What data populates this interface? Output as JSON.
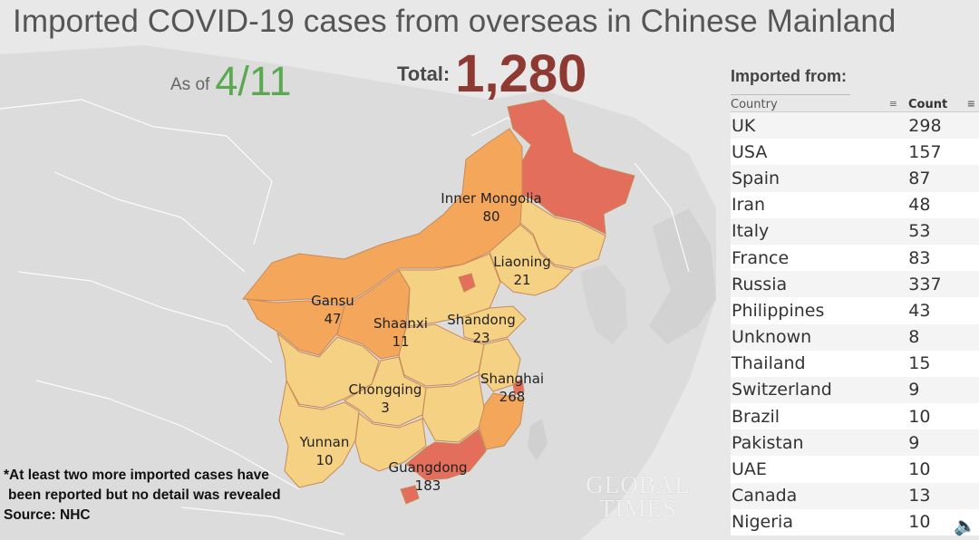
{
  "header": {
    "title": "Imported COVID-19 cases from overseas in Chinese Mainland",
    "as_of_label": "As of",
    "as_of_date": "4/11",
    "total_label": "Total:",
    "total_value": "1,280"
  },
  "map": {
    "province_labels": [
      {
        "name": "Inner Mongolia",
        "value": "80"
      },
      {
        "name": "Liaoning",
        "value": "21"
      },
      {
        "name": "Gansu",
        "value": "47"
      },
      {
        "name": "Shaanxi",
        "value": "11"
      },
      {
        "name": "Shandong",
        "value": "23"
      },
      {
        "name": "Shanghai",
        "value": "268"
      },
      {
        "name": "Chongqing",
        "value": "3"
      },
      {
        "name": "Yunnan",
        "value": "10"
      },
      {
        "name": "Guangdong",
        "value": "183"
      }
    ],
    "colors": {
      "low": "#f6d37f",
      "mid": "#f5a656",
      "high": "#e66a5b",
      "border": "#c98a4a",
      "land": "#dadada",
      "land_border": "#ffffff"
    }
  },
  "footnote": {
    "line1": "*At least two more imported cases have",
    "line2": "been reported but no detail was revealed",
    "line3": "Source: NHC"
  },
  "watermark": {
    "line1": "GLOBAL",
    "line2": "TIMES"
  },
  "table": {
    "title": "Imported from:",
    "col_country": "Country",
    "col_count": "Count",
    "sort_icon": "sort-icon",
    "rows": [
      {
        "country": "UK",
        "count": "298"
      },
      {
        "country": "USA",
        "count": "157"
      },
      {
        "country": "Spain",
        "count": "87"
      },
      {
        "country": "Iran",
        "count": "48"
      },
      {
        "country": "Italy",
        "count": "53"
      },
      {
        "country": "France",
        "count": "83"
      },
      {
        "country": "Russia",
        "count": "337"
      },
      {
        "country": "Philippines",
        "count": "43"
      },
      {
        "country": "Unknown",
        "count": "8"
      },
      {
        "country": "Thailand",
        "count": "15"
      },
      {
        "country": "Switzerland",
        "count": "9"
      },
      {
        "country": "Brazil",
        "count": "10"
      },
      {
        "country": "Pakistan",
        "count": "9"
      },
      {
        "country": "UAE",
        "count": "10"
      },
      {
        "country": "Canada",
        "count": "13"
      },
      {
        "country": "Nigeria",
        "count": "10"
      }
    ]
  },
  "chart_data": {
    "type": "table",
    "title": "Imported COVID-19 cases from overseas in Chinese Mainland",
    "as_of": "4/11",
    "total": 1280,
    "province_values": [
      {
        "province": "Inner Mongolia",
        "value": 80
      },
      {
        "province": "Liaoning",
        "value": 21
      },
      {
        "province": "Gansu",
        "value": 47
      },
      {
        "province": "Shaanxi",
        "value": 11
      },
      {
        "province": "Shandong",
        "value": 23
      },
      {
        "province": "Shanghai",
        "value": 268
      },
      {
        "province": "Chongqing",
        "value": 3
      },
      {
        "province": "Yunnan",
        "value": 10
      },
      {
        "province": "Guangdong",
        "value": 183
      }
    ],
    "imported_from": {
      "columns": [
        "Country",
        "Count"
      ],
      "categories": [
        "UK",
        "USA",
        "Spain",
        "Iran",
        "Italy",
        "France",
        "Russia",
        "Philippines",
        "Unknown",
        "Thailand",
        "Switzerland",
        "Brazil",
        "Pakistan",
        "UAE",
        "Canada",
        "Nigeria"
      ],
      "values": [
        298,
        157,
        87,
        48,
        53,
        83,
        337,
        43,
        8,
        15,
        9,
        10,
        9,
        10,
        13,
        10
      ]
    }
  }
}
